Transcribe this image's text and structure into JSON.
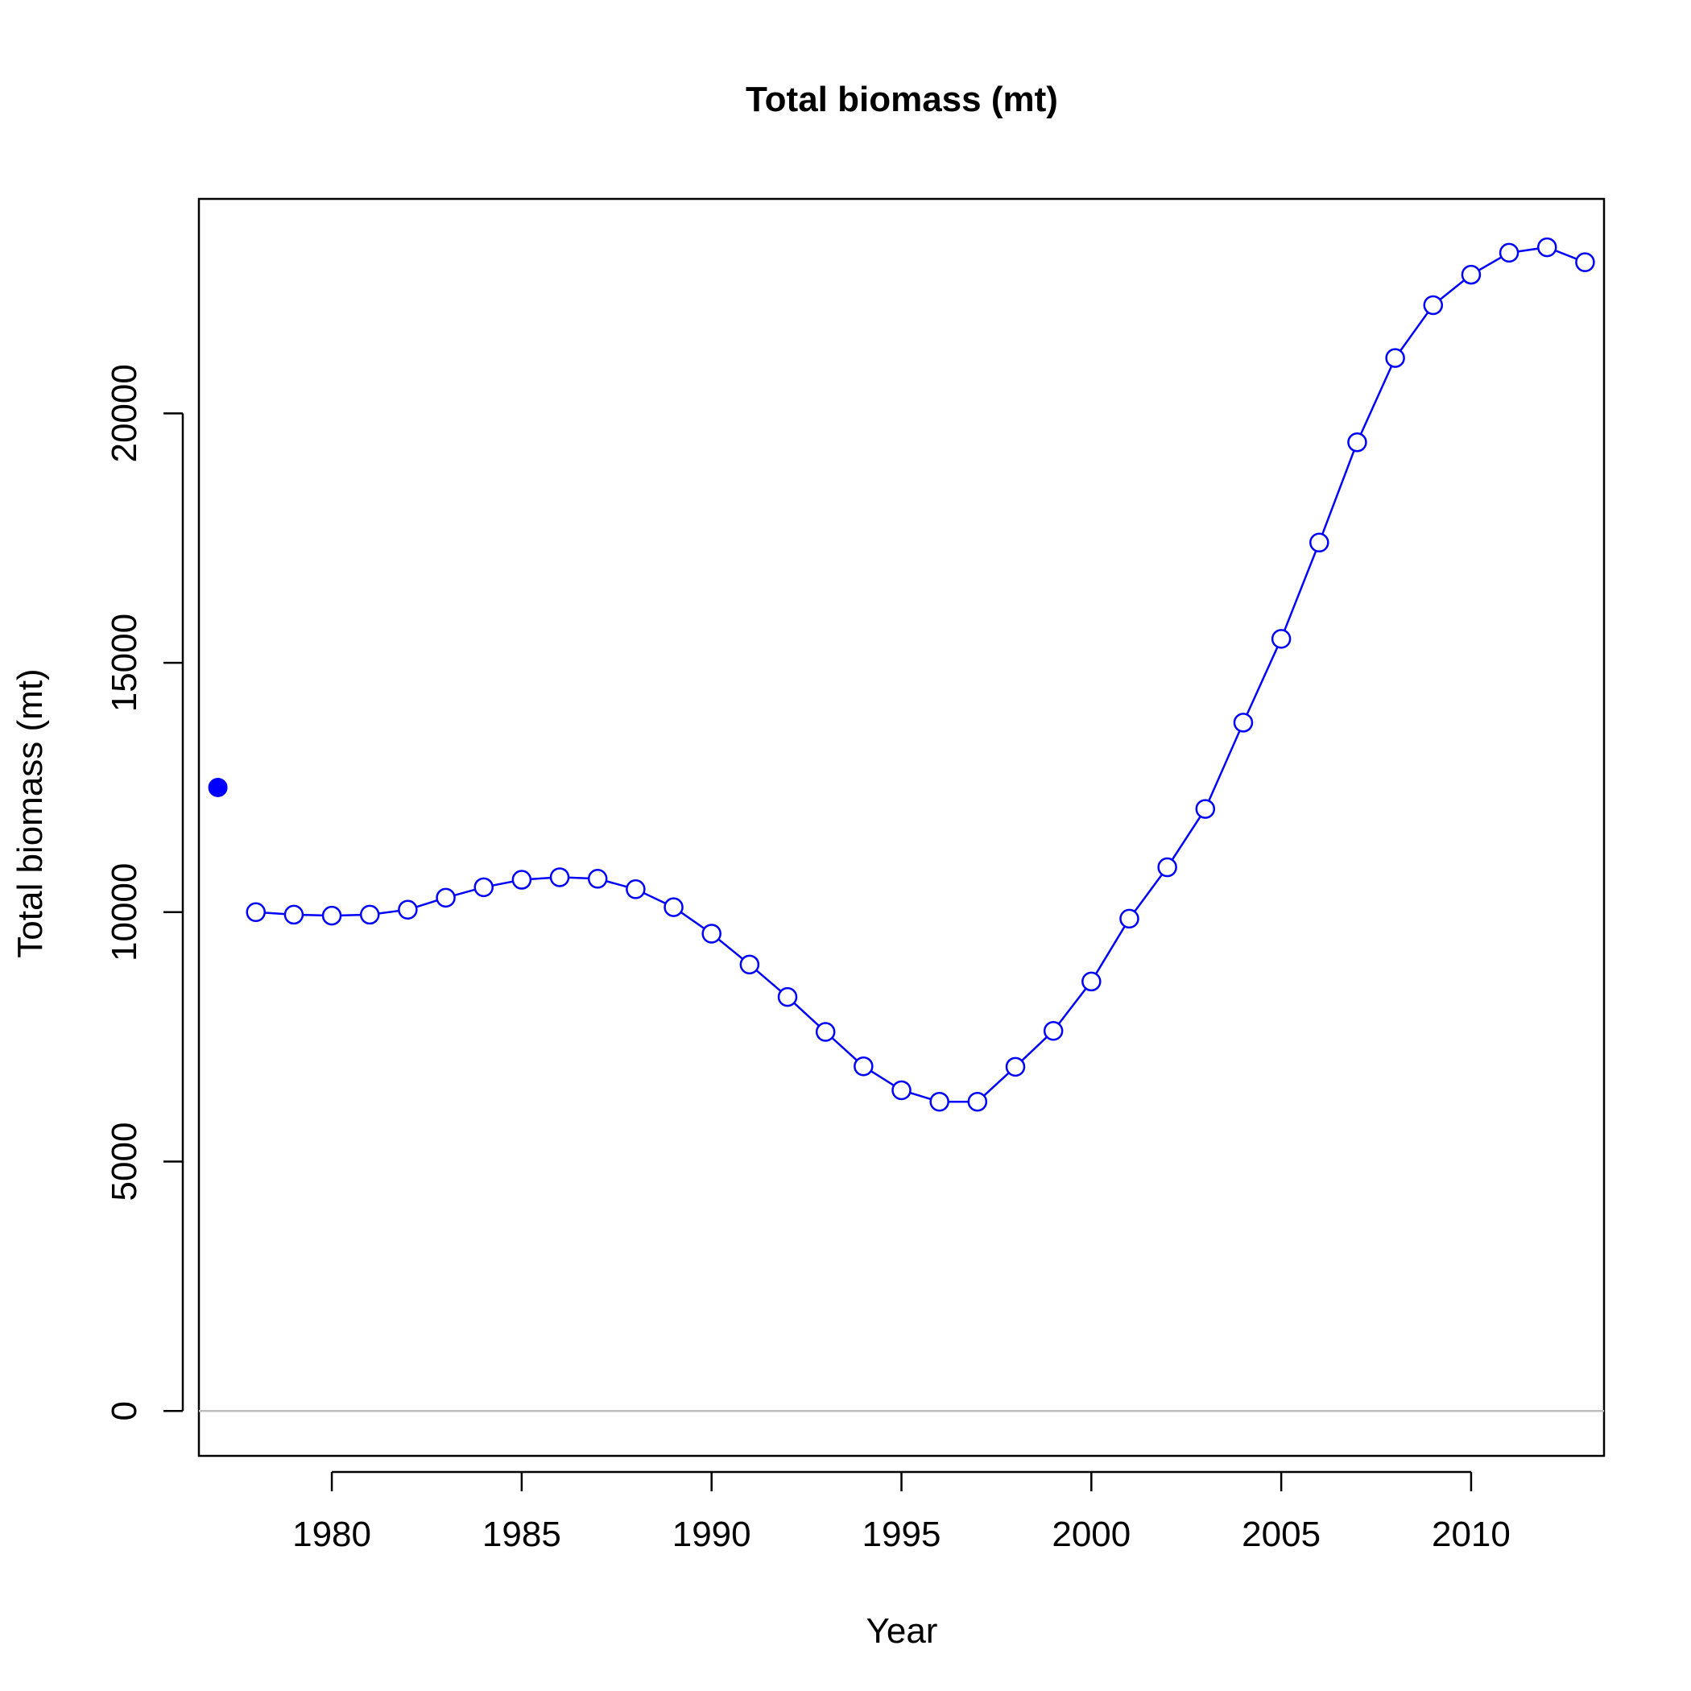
{
  "chart_data": {
    "type": "line",
    "title": "Total biomass (mt)",
    "xlabel": "Year",
    "ylabel": "Total biomass (mt)",
    "xlim": [
      1976.5,
      2013.5
    ],
    "ylim": [
      -900,
      24300
    ],
    "x_ticks": [
      "1980",
      "1985",
      "1990",
      "1995",
      "2000",
      "2005",
      "2010"
    ],
    "y_ticks": [
      "0",
      "5000",
      "10000",
      "15000",
      "20000"
    ],
    "reference_line": {
      "y": 0,
      "color": "#bebebe"
    },
    "virgin_point": {
      "x": 1977,
      "y": 12500,
      "marker": "filled-circle"
    },
    "series": [
      {
        "x": [
          1978,
          1979,
          1980,
          1981,
          1982,
          1983,
          1984,
          1985,
          1986,
          1987,
          1988,
          1989,
          1990,
          1991,
          1992,
          1993,
          1994,
          1995,
          1996,
          1997,
          1998,
          1999,
          2000,
          2001,
          2002,
          2003,
          2004,
          2005,
          2006,
          2007,
          2008,
          2009,
          2010,
          2011,
          2012,
          2013
        ],
        "y": [
          10000,
          9950,
          9930,
          9950,
          10050,
          10290,
          10500,
          10650,
          10700,
          10670,
          10460,
          10100,
          9570,
          8950,
          8300,
          7600,
          6910,
          6430,
          6200,
          6200,
          6900,
          7620,
          8610,
          9870,
          10900,
          12070,
          13800,
          15480,
          17410,
          19420,
          21110,
          22170,
          22780,
          23220,
          23330,
          23030
        ],
        "marker": "open-circle"
      }
    ],
    "grid": false,
    "colors": {
      "series": "#0000ff",
      "axes": "#000000",
      "reference": "#bebebe"
    }
  }
}
